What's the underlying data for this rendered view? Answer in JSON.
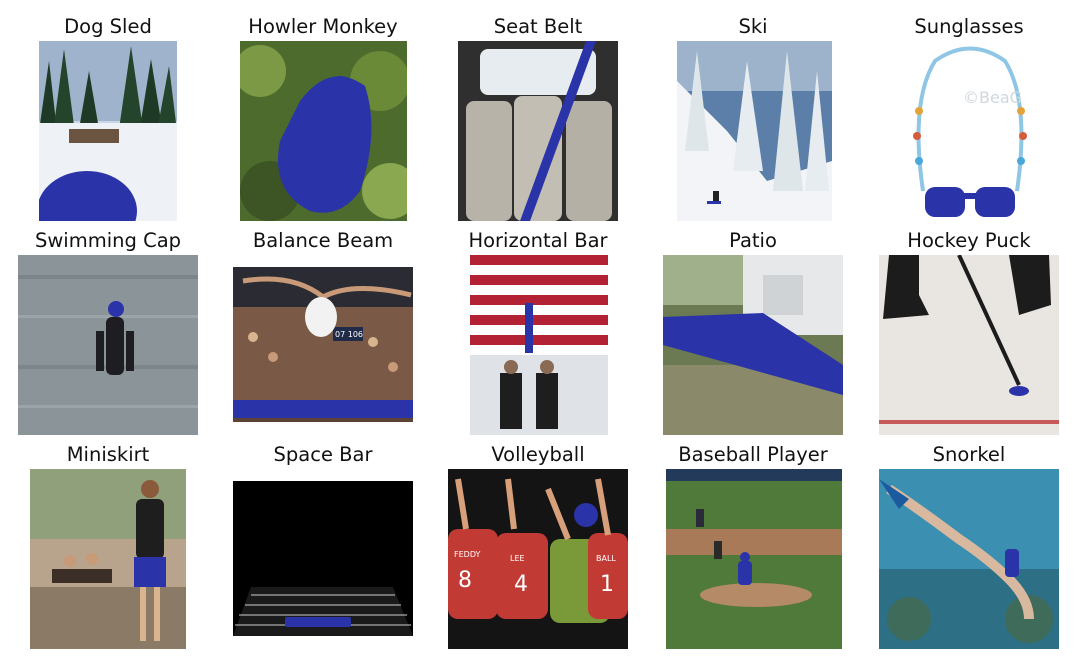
{
  "panels": [
    {
      "id": "dog-sled",
      "label": "Dog Sled"
    },
    {
      "id": "howler-monkey",
      "label": "Howler Monkey"
    },
    {
      "id": "seat-belt",
      "label": "Seat Belt"
    },
    {
      "id": "ski",
      "label": "Ski"
    },
    {
      "id": "sunglasses",
      "label": "Sunglasses",
      "watermark": "©BeaG"
    },
    {
      "id": "swimming-cap",
      "label": "Swimming Cap"
    },
    {
      "id": "balance-beam",
      "label": "Balance Beam",
      "scoreboard": "07 106"
    },
    {
      "id": "horizontal-bar",
      "label": "Horizontal Bar"
    },
    {
      "id": "patio",
      "label": "Patio"
    },
    {
      "id": "hockey-puck",
      "label": "Hockey Puck"
    },
    {
      "id": "miniskirt",
      "label": "Miniskirt"
    },
    {
      "id": "space-bar",
      "label": "Space Bar"
    },
    {
      "id": "volleyball",
      "label": "Volleyball",
      "jerseys": [
        "8",
        "4",
        "1"
      ],
      "jersey_names": [
        "FEDDY",
        "LEE",
        "BALL"
      ]
    },
    {
      "id": "baseball-player",
      "label": "Baseball Player"
    },
    {
      "id": "snorkel",
      "label": "Snorkel"
    }
  ],
  "mask_color": "#2a33a8"
}
